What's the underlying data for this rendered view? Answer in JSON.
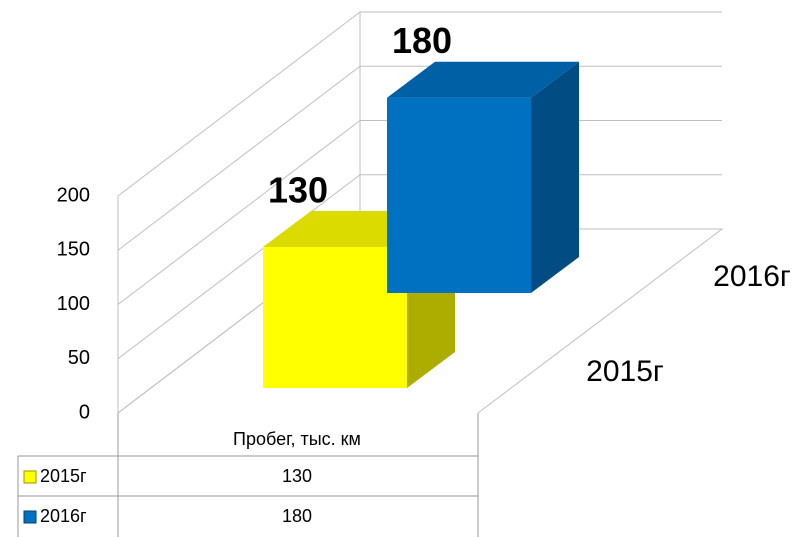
{
  "chart_data": {
    "type": "bar",
    "categories": [
      "Пробег, тыс. км"
    ],
    "series": [
      {
        "name": "2015г",
        "color": "#ffff00",
        "values": [
          130
        ]
      },
      {
        "name": "2016г",
        "color": "#0070c0",
        "values": [
          180
        ]
      }
    ],
    "ylim": [
      0,
      200
    ],
    "yticks": [
      0,
      50,
      100,
      150,
      200
    ],
    "grid": true,
    "data_table": true
  }
}
